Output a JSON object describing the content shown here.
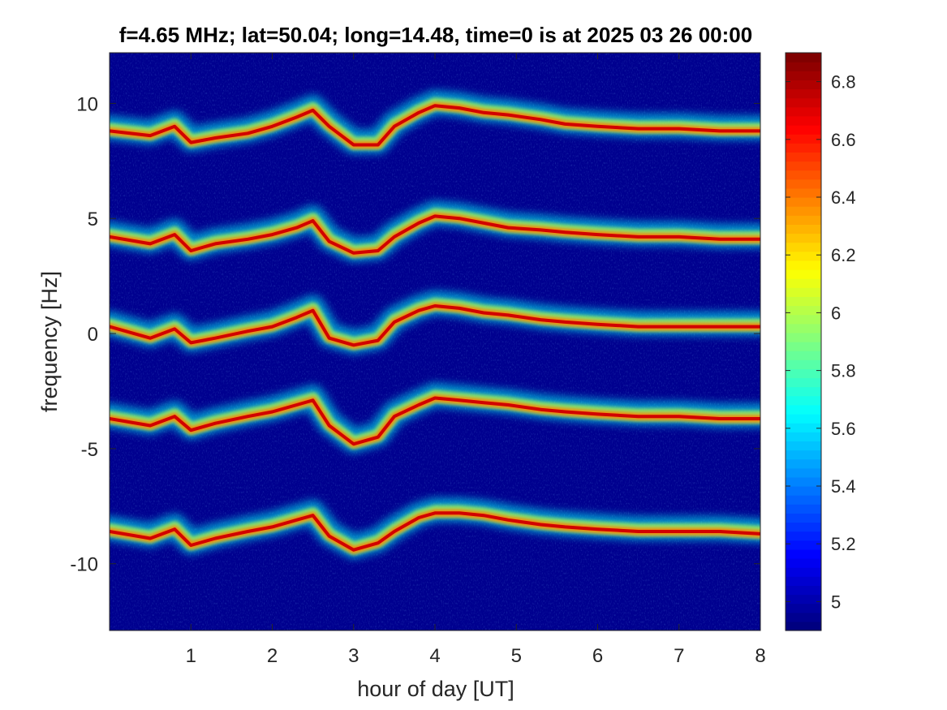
{
  "chart_data": {
    "type": "heatmap",
    "title": "f=4.65 MHz;  lat=50.04; long=14.48, time=0 is at 2025 03 26 00:00",
    "xlabel": "hour of day [UT]",
    "ylabel": "frequency [Hz]",
    "xlim": [
      0,
      8
    ],
    "ylim": [
      -12.9,
      12.2
    ],
    "x_ticks": [
      1,
      2,
      3,
      4,
      5,
      6,
      7,
      8
    ],
    "x_tick_labels": [
      "1",
      "2",
      "3",
      "4",
      "5",
      "6",
      "7",
      "8"
    ],
    "y_ticks": [
      -10,
      -5,
      0,
      5,
      10
    ],
    "y_tick_labels": [
      "-10",
      "-5",
      "0",
      "5",
      "10"
    ],
    "colormap": "jet",
    "background_color": "#00008f",
    "colorbar": {
      "clim": [
        4.9,
        6.9
      ],
      "ticks": [
        5,
        5.2,
        5.4,
        5.6,
        5.8,
        6,
        6.2,
        6.4,
        6.6,
        6.8
      ],
      "tick_labels": [
        "5",
        "5.2",
        "5.4",
        "5.6",
        "5.8",
        "6",
        "6.2",
        "6.4",
        "6.6",
        "6.8"
      ]
    },
    "traces": [
      {
        "name": "trace at ~9 Hz",
        "x": [
          0,
          0.5,
          0.8,
          1.0,
          1.3,
          1.7,
          2.0,
          2.3,
          2.5,
          2.7,
          3.0,
          3.3,
          3.5,
          3.8,
          4.0,
          4.3,
          4.6,
          4.9,
          5.3,
          5.6,
          6.0,
          6.5,
          7.0,
          7.5,
          8.0
        ],
        "y": [
          8.8,
          8.6,
          9.0,
          8.3,
          8.5,
          8.7,
          9.0,
          9.4,
          9.7,
          9.0,
          8.2,
          8.2,
          9.0,
          9.6,
          9.9,
          9.8,
          9.6,
          9.5,
          9.3,
          9.1,
          9.0,
          8.9,
          8.9,
          8.8,
          8.8
        ]
      },
      {
        "name": "trace at ~4 Hz",
        "x": [
          0,
          0.5,
          0.8,
          1.0,
          1.3,
          1.7,
          2.0,
          2.3,
          2.5,
          2.7,
          3.0,
          3.3,
          3.5,
          3.8,
          4.0,
          4.3,
          4.6,
          4.9,
          5.3,
          5.6,
          6.0,
          6.5,
          7.0,
          7.5,
          8.0
        ],
        "y": [
          4.2,
          3.9,
          4.3,
          3.6,
          3.9,
          4.1,
          4.3,
          4.6,
          4.9,
          4.0,
          3.5,
          3.6,
          4.2,
          4.8,
          5.1,
          5.0,
          4.8,
          4.6,
          4.5,
          4.4,
          4.3,
          4.2,
          4.2,
          4.1,
          4.1
        ]
      },
      {
        "name": "trace at ~0 Hz",
        "x": [
          0,
          0.5,
          0.8,
          1.0,
          1.3,
          1.7,
          2.0,
          2.3,
          2.5,
          2.7,
          3.0,
          3.3,
          3.5,
          3.8,
          4.0,
          4.3,
          4.6,
          4.9,
          5.3,
          5.6,
          6.0,
          6.5,
          7.0,
          7.5,
          8.0
        ],
        "y": [
          0.3,
          -0.2,
          0.2,
          -0.4,
          -0.2,
          0.1,
          0.3,
          0.7,
          1.0,
          -0.2,
          -0.5,
          -0.3,
          0.5,
          1.0,
          1.2,
          1.1,
          0.9,
          0.8,
          0.6,
          0.5,
          0.4,
          0.3,
          0.3,
          0.3,
          0.3
        ]
      },
      {
        "name": "trace at ~-4 Hz",
        "x": [
          0,
          0.5,
          0.8,
          1.0,
          1.3,
          1.7,
          2.0,
          2.3,
          2.5,
          2.7,
          3.0,
          3.3,
          3.5,
          3.8,
          4.0,
          4.3,
          4.6,
          4.9,
          5.3,
          5.6,
          6.0,
          6.5,
          7.0,
          7.5,
          8.0
        ],
        "y": [
          -3.7,
          -4.0,
          -3.6,
          -4.2,
          -3.9,
          -3.6,
          -3.4,
          -3.1,
          -2.9,
          -4.0,
          -4.8,
          -4.5,
          -3.6,
          -3.1,
          -2.8,
          -2.9,
          -3.0,
          -3.1,
          -3.3,
          -3.4,
          -3.5,
          -3.6,
          -3.6,
          -3.7,
          -3.7
        ]
      },
      {
        "name": "trace at ~-9 Hz",
        "x": [
          0,
          0.5,
          0.8,
          1.0,
          1.3,
          1.7,
          2.0,
          2.3,
          2.5,
          2.7,
          3.0,
          3.3,
          3.5,
          3.8,
          4.0,
          4.3,
          4.6,
          4.9,
          5.3,
          5.6,
          6.0,
          6.5,
          7.0,
          7.5,
          8.0
        ],
        "y": [
          -8.6,
          -8.9,
          -8.5,
          -9.2,
          -8.9,
          -8.6,
          -8.4,
          -8.1,
          -7.9,
          -8.8,
          -9.4,
          -9.1,
          -8.6,
          -8.0,
          -7.8,
          -7.8,
          -7.9,
          -8.1,
          -8.3,
          -8.4,
          -8.5,
          -8.6,
          -8.6,
          -8.6,
          -8.7
        ]
      }
    ]
  }
}
